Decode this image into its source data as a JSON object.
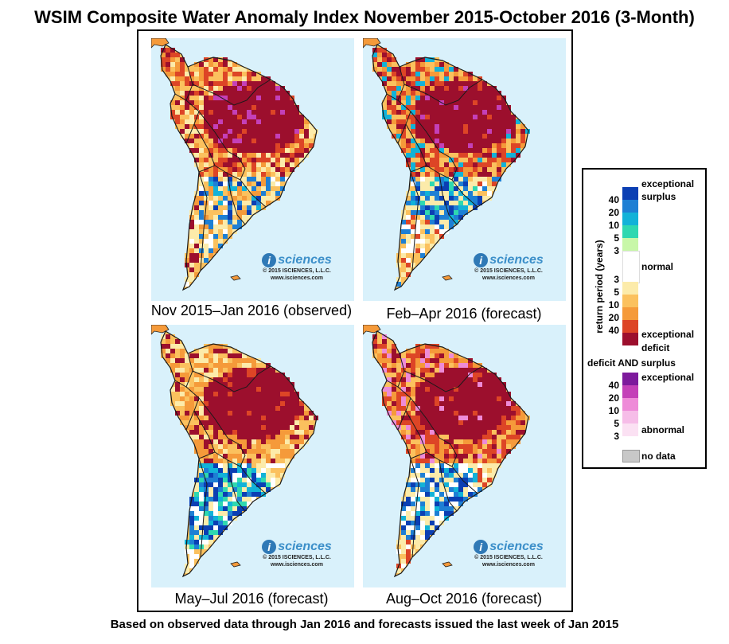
{
  "title": "WSIM Composite Water Anomaly Index November 2015-October 2016 (3-Month)",
  "panels": [
    {
      "caption": "Nov 2015–Jan 2016 (observed)",
      "scenario": "observed"
    },
    {
      "caption": "Feb–Apr 2016 (forecast)",
      "scenario": "forecast-1"
    },
    {
      "caption": "May–Jul 2016 (forecast)",
      "scenario": "forecast-2"
    },
    {
      "caption": "Aug–Oct 2016 (forecast)",
      "scenario": "forecast-3"
    }
  ],
  "logo": {
    "brand_letter": "i",
    "brand_name": "sciences",
    "copyright": "© 2015 ISCIENCES, L.L.C.",
    "url": "www.isciences.com"
  },
  "legend": {
    "axis_label": "return period (years)",
    "surplus_label_1": "exceptional",
    "surplus_label_2": "surplus",
    "normal_label": "normal",
    "deficit_label_1": "exceptional",
    "deficit_label_2": "deficit",
    "both_header": "deficit AND surplus",
    "both_top_label": "exceptional",
    "both_bottom_label": "abnormal",
    "nodata_label": "no data",
    "surplus_ticks": [
      "40",
      "20",
      "10",
      "5",
      "3"
    ],
    "deficit_ticks": [
      "3",
      "5",
      "10",
      "20",
      "40"
    ],
    "both_ticks": [
      "40",
      "20",
      "10",
      "5",
      "3"
    ],
    "colors": {
      "surplus": [
        "#0b3fb3",
        "#1e7fd4",
        "#12b2d8",
        "#2fd8b0",
        "#c8f7a8"
      ],
      "normal": "#ffffff",
      "deficit": [
        "#fcebaa",
        "#fbc15e",
        "#f59a3a",
        "#dd4526",
        "#9c0f2d"
      ],
      "both": [
        "#7d1a9c",
        "#c440b8",
        "#ee8bd8",
        "#f6bde8",
        "#fbe1f3"
      ],
      "nodata": "#c8c8c8",
      "ocean": "#d9f1fb"
    }
  },
  "footer": "Based on observed data through Jan 2016 and forecasts issued the last week of Jan 2015"
}
